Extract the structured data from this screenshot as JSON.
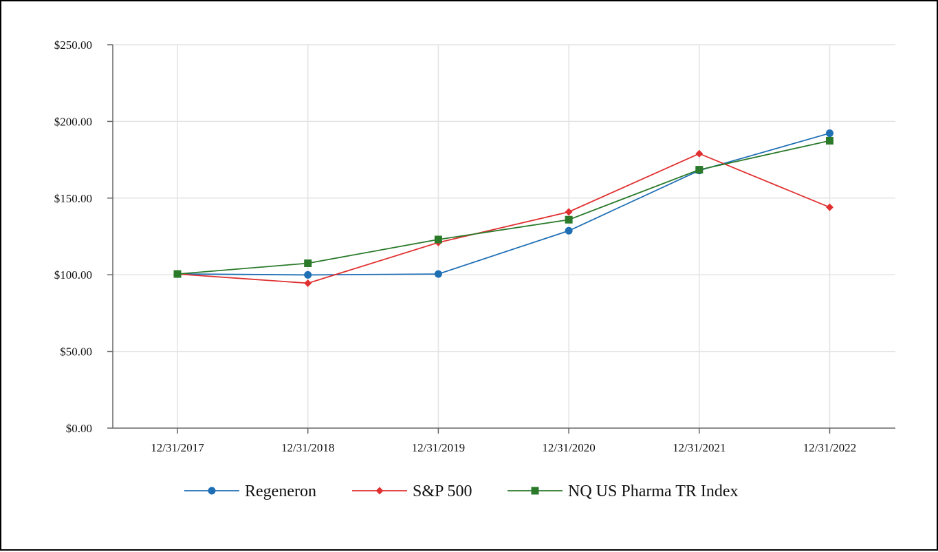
{
  "chart_data": {
    "type": "line",
    "title": "",
    "xlabel": "",
    "ylabel": "",
    "categories": [
      "12/31/2017",
      "12/31/2018",
      "12/31/2019",
      "12/31/2020",
      "12/31/2021",
      "12/31/2022"
    ],
    "ylim": [
      0,
      250
    ],
    "yticks": [
      0,
      50,
      100,
      150,
      200,
      250
    ],
    "ytick_labels": [
      "$0.00",
      "$50.00",
      "$100.00",
      "$150.00",
      "$200.00",
      "$250.00"
    ],
    "grid": true,
    "legend_position": "bottom-center",
    "series": [
      {
        "name": "Regeneron",
        "marker": "circle",
        "color": "#1f6fb5",
        "values": [
          100.5,
          99.9,
          100.5,
          128.7,
          168.0,
          192.3
        ]
      },
      {
        "name": "S&P 500",
        "marker": "diamond",
        "color": "#e03030",
        "values": [
          100.5,
          94.5,
          121.0,
          141.0,
          179.0,
          144.0
        ]
      },
      {
        "name": "NQ US Pharma TR Index",
        "marker": "square",
        "color": "#2a7a2a",
        "values": [
          100.5,
          107.5,
          123.0,
          135.9,
          168.5,
          187.4
        ]
      }
    ]
  }
}
